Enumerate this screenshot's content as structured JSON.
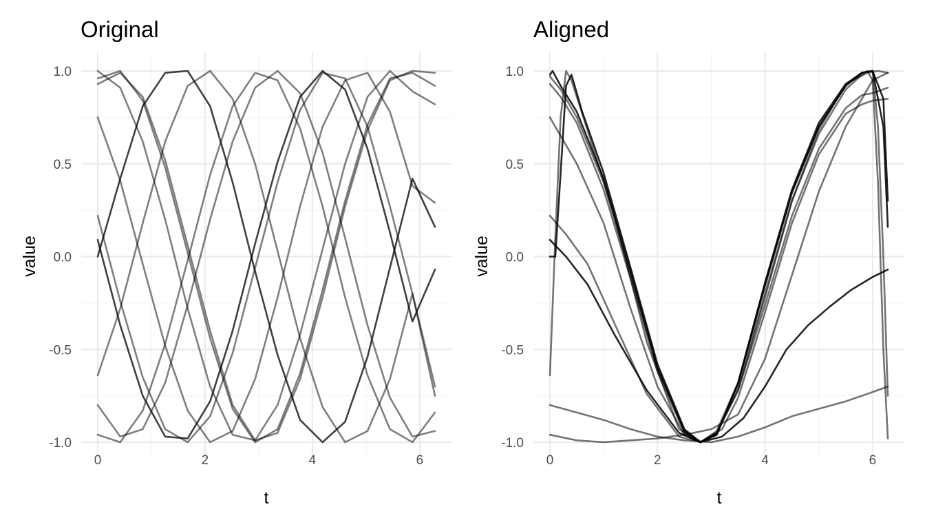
{
  "chart_data": [
    {
      "type": "line",
      "title": "Original",
      "xlabel": "t",
      "ylabel": "value",
      "xlim": [
        0,
        6.283
      ],
      "ylim": [
        -1,
        1
      ],
      "xticks": [
        0,
        2,
        4,
        6
      ],
      "xtick_labels": [
        "0",
        "2",
        "4",
        "6"
      ],
      "yticks": [
        -1,
        -0.5,
        0,
        0.5,
        1
      ],
      "ytick_labels": [
        "-1.0",
        "-0.5",
        "0.0",
        "0.5",
        "1.0"
      ],
      "grid": true,
      "line_color": "#000000",
      "x": [
        0,
        0.419,
        0.838,
        1.257,
        1.676,
        2.094,
        2.513,
        2.932,
        3.351,
        3.77,
        4.189,
        4.608,
        5.027,
        5.445,
        5.864,
        6.283
      ],
      "series": [
        {
          "opacity": 0.75,
          "values": [
            0.09,
            -0.37,
            -0.75,
            -0.97,
            -0.98,
            -0.78,
            -0.4,
            0.07,
            0.51,
            0.86,
            1.0,
            0.9,
            0.58,
            0.13,
            -0.35,
            -0.07
          ]
        },
        {
          "opacity": 0.75,
          "values": [
            0.0,
            0.42,
            0.81,
            0.99,
            1.0,
            0.81,
            0.4,
            -0.08,
            -0.53,
            -0.88,
            -1.0,
            -0.89,
            -0.54,
            -0.06,
            0.42,
            0.16
          ]
        },
        {
          "opacity": 0.5,
          "values": [
            1.0,
            0.91,
            0.62,
            0.2,
            -0.28,
            -0.7,
            -0.96,
            -0.99,
            -0.8,
            -0.42,
            0.04,
            0.5,
            0.86,
            1.0,
            0.89,
            0.82
          ]
        },
        {
          "opacity": 0.5,
          "values": [
            0.96,
            1.0,
            0.84,
            0.48,
            0.02,
            -0.44,
            -0.82,
            -1.0,
            -0.93,
            -0.63,
            -0.18,
            0.3,
            0.71,
            0.96,
            0.99,
            0.92
          ]
        },
        {
          "opacity": 0.5,
          "values": [
            0.93,
            0.99,
            0.86,
            0.52,
            0.06,
            -0.4,
            -0.8,
            -0.99,
            -0.95,
            -0.66,
            -0.22,
            0.27,
            0.68,
            0.95,
            1.0,
            0.99
          ]
        },
        {
          "opacity": 0.5,
          "values": [
            0.75,
            0.41,
            -0.04,
            -0.48,
            -0.83,
            -1.0,
            -0.94,
            -0.66,
            -0.22,
            0.27,
            0.7,
            0.95,
            0.99,
            0.78,
            0.38,
            0.29
          ]
        },
        {
          "opacity": 0.5,
          "values": [
            0.22,
            -0.24,
            -0.65,
            -0.93,
            -1.0,
            -0.86,
            -0.52,
            -0.06,
            0.4,
            0.79,
            0.99,
            0.96,
            0.7,
            0.27,
            -0.2,
            -0.7
          ]
        },
        {
          "opacity": 0.5,
          "values": [
            -0.64,
            -0.28,
            0.18,
            0.62,
            0.92,
            1.0,
            0.85,
            0.5,
            0.03,
            -0.44,
            -0.81,
            -1.0,
            -0.94,
            -0.66,
            -0.2,
            -0.75
          ]
        },
        {
          "opacity": 0.5,
          "values": [
            -0.8,
            -0.97,
            -0.93,
            -0.68,
            -0.26,
            0.2,
            0.62,
            0.91,
            1.0,
            0.88,
            0.56,
            0.1,
            -0.37,
            -0.76,
            -0.97,
            -0.94
          ]
        },
        {
          "opacity": 0.5,
          "values": [
            -0.96,
            -1.0,
            -0.83,
            -0.47,
            -0.02,
            0.44,
            0.81,
            0.99,
            0.95,
            0.69,
            0.27,
            -0.22,
            -0.64,
            -0.93,
            -1.0,
            -0.84
          ]
        }
      ]
    },
    {
      "type": "line",
      "title": "Aligned",
      "xlabel": "t",
      "ylabel": "value",
      "xlim": [
        0,
        6.283
      ],
      "ylim": [
        -1,
        1
      ],
      "xticks": [
        0,
        2,
        4,
        6
      ],
      "xtick_labels": [
        "0",
        "2",
        "4",
        "6"
      ],
      "yticks": [
        -1,
        -0.5,
        0,
        0.5,
        1
      ],
      "ytick_labels": [
        "-1.0",
        "-0.5",
        "0.0",
        "0.5",
        "1.0"
      ],
      "grid": true,
      "line_color": "#000000",
      "series": [
        {
          "opacity": 0.85,
          "x": [
            0,
            0.05,
            0.2,
            0.5,
            1.0,
            1.5,
            2.0,
            2.5,
            2.8,
            3.1,
            3.5,
            4.0,
            4.5,
            5.0,
            5.5,
            5.8,
            6.0,
            6.2,
            6.283
          ],
          "values": [
            0.98,
            1.0,
            0.92,
            0.78,
            0.42,
            -0.08,
            -0.6,
            -0.94,
            -1.0,
            -0.96,
            -0.68,
            -0.15,
            0.35,
            0.7,
            0.92,
            0.99,
            1.0,
            0.7,
            0.16
          ]
        },
        {
          "opacity": 0.85,
          "x": [
            0,
            0.1,
            0.2,
            0.3,
            0.4,
            0.6,
            1.0,
            1.5,
            2.0,
            2.5,
            2.8,
            3.1,
            3.5,
            4.0,
            4.5,
            5.0,
            5.5,
            5.8,
            6.0,
            6.2,
            6.283
          ],
          "values": [
            0.0,
            0.0,
            0.45,
            0.92,
            0.98,
            0.78,
            0.45,
            -0.06,
            -0.58,
            -0.93,
            -1.0,
            -0.96,
            -0.68,
            -0.14,
            0.36,
            0.72,
            0.93,
            0.99,
            1.0,
            0.85,
            0.3
          ]
        },
        {
          "opacity": 0.85,
          "x": [
            0,
            0.3,
            0.7,
            1.2,
            1.8,
            2.4,
            2.8,
            3.2,
            3.6,
            4.0,
            4.4,
            4.8,
            5.2,
            5.6,
            6.0,
            6.283
          ],
          "values": [
            0.09,
            0.0,
            -0.15,
            -0.42,
            -0.72,
            -0.95,
            -1.0,
            -0.97,
            -0.87,
            -0.7,
            -0.5,
            -0.37,
            -0.27,
            -0.18,
            -0.11,
            -0.07
          ]
        },
        {
          "opacity": 0.55,
          "x": [
            0,
            0.2,
            0.5,
            1.0,
            1.5,
            2.0,
            2.5,
            2.8,
            3.1,
            3.5,
            4.0,
            4.5,
            5.0,
            5.5,
            5.8,
            6.0,
            6.1,
            6.2,
            6.283
          ],
          "values": [
            0.97,
            0.9,
            0.75,
            0.4,
            -0.1,
            -0.6,
            -0.94,
            -1.0,
            -0.94,
            -0.68,
            -0.16,
            0.34,
            0.7,
            0.92,
            0.99,
            1.0,
            0.7,
            0.0,
            -0.75
          ]
        },
        {
          "opacity": 0.55,
          "x": [
            0,
            0.2,
            0.5,
            1.0,
            1.5,
            2.0,
            2.5,
            2.8,
            3.1,
            3.5,
            4.0,
            4.5,
            5.0,
            5.5,
            5.8,
            5.9,
            6.0,
            6.1,
            6.2,
            6.283
          ],
          "values": [
            0.93,
            0.86,
            0.72,
            0.36,
            -0.12,
            -0.62,
            -0.95,
            -1.0,
            -0.95,
            -0.7,
            -0.2,
            0.3,
            0.66,
            0.9,
            0.98,
            1.0,
            0.95,
            0.4,
            -0.5,
            -0.98
          ]
        },
        {
          "opacity": 0.55,
          "x": [
            0,
            0.2,
            0.5,
            1.0,
            1.5,
            2.0,
            2.5,
            2.8,
            3.1,
            3.5,
            4.0,
            4.5,
            5.0,
            5.5,
            5.8,
            6.0,
            6.283
          ],
          "values": [
            0.75,
            0.65,
            0.5,
            0.18,
            -0.28,
            -0.7,
            -0.96,
            -1.0,
            -0.95,
            -0.72,
            -0.26,
            0.22,
            0.58,
            0.8,
            0.87,
            0.88,
            0.91
          ]
        },
        {
          "opacity": 0.55,
          "x": [
            0,
            0.3,
            0.7,
            1.2,
            1.8,
            2.4,
            2.8,
            3.2,
            3.5,
            4.0,
            4.5,
            5.0,
            5.5,
            5.8,
            6.0,
            6.283
          ],
          "values": [
            0.22,
            0.12,
            -0.04,
            -0.36,
            -0.74,
            -0.97,
            -1.0,
            -0.93,
            -0.76,
            -0.3,
            0.18,
            0.55,
            0.77,
            0.82,
            0.84,
            0.85
          ]
        },
        {
          "opacity": 0.55,
          "x": [
            0,
            0.1,
            0.2,
            0.3,
            0.4,
            0.7,
            1.2,
            1.8,
            2.4,
            2.8,
            3.1,
            3.5,
            4.0,
            4.5,
            5.0,
            5.5,
            5.9,
            6.1,
            6.283
          ],
          "values": [
            -0.64,
            0.1,
            0.75,
            1.0,
            0.95,
            0.68,
            0.22,
            -0.46,
            -0.93,
            -1.0,
            -0.95,
            -0.72,
            -0.22,
            0.3,
            0.68,
            0.93,
            0.99,
            1.0,
            0.99
          ]
        },
        {
          "opacity": 0.55,
          "x": [
            0,
            0.5,
            1.0,
            1.5,
            2.0,
            2.5,
            3.0,
            3.5,
            4.0,
            4.5,
            5.0,
            5.5,
            6.0,
            6.283
          ],
          "values": [
            -0.8,
            -0.84,
            -0.88,
            -0.93,
            -0.97,
            -0.99,
            -1.0,
            -0.97,
            -0.92,
            -0.86,
            -0.82,
            -0.78,
            -0.73,
            -0.7
          ]
        },
        {
          "opacity": 0.55,
          "x": [
            0,
            0.5,
            1.0,
            1.5,
            2.0,
            2.5,
            3.0,
            3.5,
            4.0,
            4.5,
            5.0,
            5.5,
            6.0,
            6.283
          ],
          "values": [
            -0.96,
            -0.99,
            -1.0,
            -0.99,
            -0.98,
            -0.96,
            -0.93,
            -0.85,
            -0.55,
            -0.1,
            0.35,
            0.7,
            0.95,
            0.99
          ]
        }
      ]
    }
  ]
}
